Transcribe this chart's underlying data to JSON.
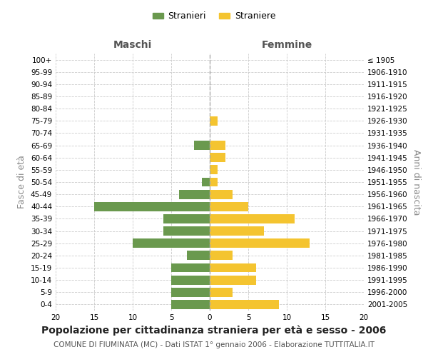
{
  "age_groups": [
    "0-4",
    "5-9",
    "10-14",
    "15-19",
    "20-24",
    "25-29",
    "30-34",
    "35-39",
    "40-44",
    "45-49",
    "50-54",
    "55-59",
    "60-64",
    "65-69",
    "70-74",
    "75-79",
    "80-84",
    "85-89",
    "90-94",
    "95-99",
    "100+"
  ],
  "birth_years": [
    "2001-2005",
    "1996-2000",
    "1991-1995",
    "1986-1990",
    "1981-1985",
    "1976-1980",
    "1971-1975",
    "1966-1970",
    "1961-1965",
    "1956-1960",
    "1951-1955",
    "1946-1950",
    "1941-1945",
    "1936-1940",
    "1931-1935",
    "1926-1930",
    "1921-1925",
    "1916-1920",
    "1911-1915",
    "1906-1910",
    "≤ 1905"
  ],
  "maschi": [
    5,
    5,
    5,
    5,
    3,
    10,
    6,
    6,
    15,
    4,
    1,
    0,
    0,
    2,
    0,
    0,
    0,
    0,
    0,
    0,
    0
  ],
  "femmine": [
    9,
    3,
    6,
    6,
    3,
    13,
    7,
    11,
    5,
    3,
    1,
    1,
    2,
    2,
    0,
    1,
    0,
    0,
    0,
    0,
    0
  ],
  "maschi_color": "#6a994e",
  "femmine_color": "#f4c430",
  "background_color": "#ffffff",
  "grid_color": "#cccccc",
  "title": "Popolazione per cittadinanza straniera per età e sesso - 2006",
  "subtitle": "COMUNE DI FIUMINATA (MC) - Dati ISTAT 1° gennaio 2006 - Elaborazione TUTTITALIA.IT",
  "ylabel_left": "Fasce di età",
  "ylabel_right": "Anni di nascita",
  "xlabel_left": "Maschi",
  "xlabel_right": "Femmine",
  "legend_stranieri": "Stranieri",
  "legend_straniere": "Straniere",
  "xlim": 20,
  "title_fontsize": 10,
  "subtitle_fontsize": 7.5,
  "label_fontsize": 9,
  "tick_fontsize": 7.5,
  "header_fontsize": 10
}
